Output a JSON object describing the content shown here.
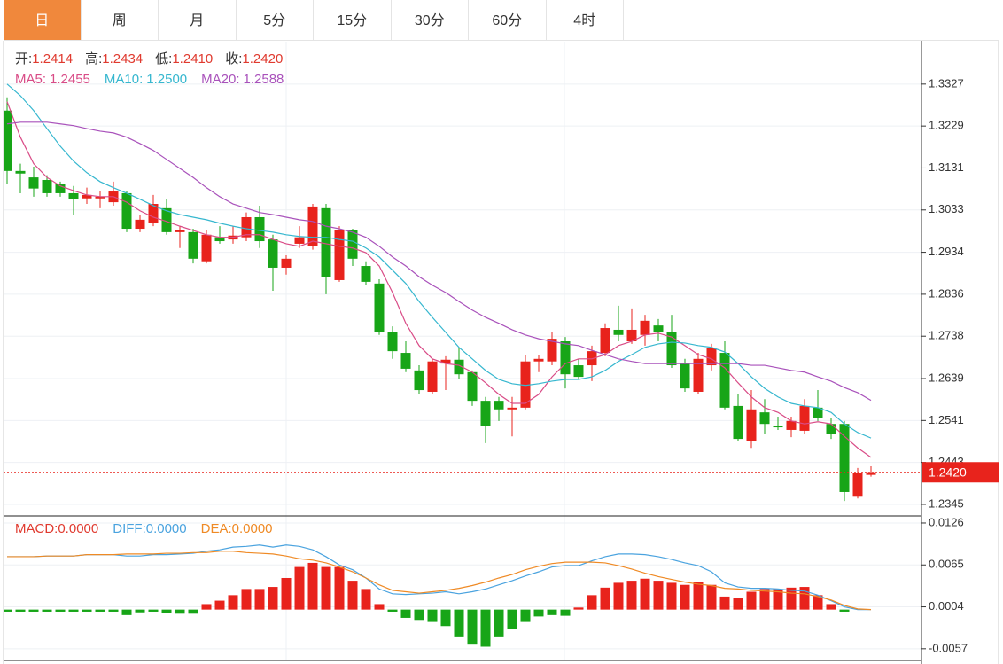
{
  "tabs": [
    "日",
    "周",
    "月",
    "5分",
    "15分",
    "30分",
    "60分",
    "4时"
  ],
  "active_tab": 0,
  "chart_data": [
    {
      "type": "candlestick",
      "up_color": "#e8231c",
      "down_color": "#17a517",
      "separator": ":",
      "header": [
        {
          "label": "开",
          "value": "1.2414"
        },
        {
          "label": "高",
          "value": "1.2434"
        },
        {
          "label": "低",
          "value": "1.2410"
        },
        {
          "label": "收",
          "value": "1.2420"
        }
      ],
      "ylim": [
        1.2318,
        1.3424
      ],
      "yticks": [
        1.3327,
        1.3229,
        1.3131,
        1.3033,
        1.2934,
        1.2836,
        1.2738,
        1.2639,
        1.2541,
        1.2443,
        1.2345
      ],
      "grid": true,
      "last_price": {
        "value": 1.242,
        "label": "1.2420"
      },
      "open": [
        1.3265,
        1.3124,
        1.3109,
        1.3103,
        1.3093,
        1.3072,
        1.306,
        1.306,
        1.3051,
        1.3072,
        1.2989,
        1.3002,
        1.3037,
        1.2981,
        1.2981,
        1.2913,
        1.2969,
        1.2964,
        1.2969,
        1.3016,
        1.2964,
        1.2898,
        1.2954,
        1.2948,
        1.3037,
        1.2869,
        1.2985,
        1.2902,
        1.2861,
        1.2747,
        1.2699,
        1.2658,
        1.2608,
        1.2674,
        1.2683,
        1.2654,
        1.2587,
        1.2587,
        1.2567,
        1.2571,
        1.2679,
        1.2679,
        1.2726,
        1.267,
        1.267,
        1.2699,
        1.2753,
        1.2726,
        1.2741,
        1.2763,
        1.2747,
        1.2674,
        1.2608,
        1.267,
        1.2699,
        1.2575,
        1.2494,
        1.256,
        1.2529,
        1.2519,
        1.2517,
        1.2571,
        1.2533,
        1.2533,
        1.2363,
        1.2414
      ],
      "high": [
        1.3296,
        1.3141,
        1.3134,
        1.3114,
        1.3099,
        1.3089,
        1.3085,
        1.3078,
        1.3099,
        1.3078,
        1.3022,
        1.3068,
        1.3058,
        1.2995,
        1.2989,
        1.2985,
        1.2995,
        1.2995,
        1.3027,
        1.3043,
        1.2975,
        1.2927,
        1.2995,
        1.3047,
        1.3047,
        1.2995,
        1.2989,
        1.2913,
        1.2871,
        1.2761,
        1.2726,
        1.267,
        1.2685,
        1.2691,
        1.2712,
        1.2658,
        1.2596,
        1.2596,
        1.2596,
        1.2695,
        1.2695,
        1.2747,
        1.2736,
        1.2685,
        1.2716,
        1.2768,
        1.2809,
        1.2803,
        1.2788,
        1.2778,
        1.2788,
        1.2685,
        1.2699,
        1.272,
        1.2726,
        1.2602,
        1.2612,
        1.2591,
        1.255,
        1.255,
        1.2591,
        1.2612,
        1.2546,
        1.254,
        1.243,
        1.2434
      ],
      "low": [
        1.3093,
        1.3072,
        1.3064,
        1.3064,
        1.3064,
        1.3022,
        1.3047,
        1.3037,
        1.3043,
        1.2981,
        1.2981,
        1.2995,
        1.2975,
        1.2944,
        1.2908,
        1.2908,
        1.2954,
        1.2954,
        1.296,
        1.2944,
        1.2844,
        1.2882,
        1.2944,
        1.294,
        1.2836,
        1.2865,
        1.2902,
        1.2857,
        1.2741,
        1.2685,
        1.2654,
        1.2602,
        1.2602,
        1.2612,
        1.2637,
        1.2575,
        1.2488,
        1.254,
        1.2504,
        1.2567,
        1.2654,
        1.267,
        1.2616,
        1.2637,
        1.2633,
        1.2691,
        1.2726,
        1.272,
        1.2716,
        1.2726,
        1.2664,
        1.2608,
        1.2602,
        1.2658,
        1.2567,
        1.2492,
        1.2477,
        1.2509,
        1.2519,
        1.2502,
        1.2509,
        1.254,
        1.2498,
        1.2353,
        1.2359,
        1.241
      ],
      "close": [
        1.3124,
        1.3118,
        1.3083,
        1.3072,
        1.3072,
        1.3058,
        1.3068,
        1.3064,
        1.3076,
        1.2989,
        1.301,
        1.3047,
        1.2981,
        1.2985,
        1.2919,
        1.2975,
        1.296,
        1.2973,
        1.3016,
        1.296,
        1.2898,
        1.2919,
        1.2969,
        1.3041,
        1.2877,
        1.2985,
        1.2919,
        1.2865,
        1.2747,
        1.2703,
        1.2662,
        1.2612,
        1.2679,
        1.2683,
        1.2649,
        1.2587,
        1.2529,
        1.2567,
        1.2571,
        1.2679,
        1.2685,
        1.2732,
        1.2649,
        1.2643,
        1.2703,
        1.2757,
        1.2741,
        1.2753,
        1.2774,
        1.2747,
        1.267,
        1.2616,
        1.2685,
        1.271,
        1.2571,
        1.2498,
        1.2567,
        1.2533,
        1.2525,
        1.254,
        1.2575,
        1.2546,
        1.2509,
        1.2374,
        1.2419,
        1.242
      ],
      "series": [
        {
          "name": "MA5",
          "color": "#d94c87",
          "value_label": "1.2455",
          "values": [
            1.3286,
            1.3203,
            1.3141,
            1.3109,
            1.3089,
            1.3078,
            1.3068,
            1.3064,
            1.3064,
            1.3051,
            1.3031,
            1.3016,
            1.3006,
            1.2995,
            1.2985,
            1.2975,
            1.2969,
            1.2969,
            1.2975,
            1.2975,
            1.2964,
            1.2954,
            1.2948,
            1.296,
            1.2954,
            1.2948,
            1.2944,
            1.2933,
            1.2902,
            1.284,
            1.2768,
            1.2716,
            1.2685,
            1.2674,
            1.267,
            1.2654,
            1.2629,
            1.2602,
            1.2581,
            1.2581,
            1.2602,
            1.2643,
            1.2674,
            1.2685,
            1.2685,
            1.2695,
            1.2716,
            1.2726,
            1.2741,
            1.2745,
            1.2736,
            1.2716,
            1.2695,
            1.2685,
            1.2664,
            1.2629,
            1.2596,
            1.2571,
            1.256,
            1.254,
            1.2533,
            1.2538,
            1.2533,
            1.2504,
            1.2477,
            1.2455
          ]
        },
        {
          "name": "MA10",
          "color": "#36b7cf",
          "value_label": "1.2500",
          "values": [
            1.3327,
            1.33,
            1.3265,
            1.3223,
            1.3182,
            1.3147,
            1.312,
            1.3099,
            1.3085,
            1.3072,
            1.3058,
            1.3043,
            1.3031,
            1.3022,
            1.3016,
            1.301,
            1.3002,
            1.2995,
            1.2989,
            1.2985,
            1.2981,
            1.2975,
            1.2971,
            1.2969,
            1.2969,
            1.2964,
            1.296,
            1.2944,
            1.2923,
            1.2892,
            1.2861,
            1.2819,
            1.2782,
            1.2747,
            1.2712,
            1.2685,
            1.2658,
            1.2637,
            1.2627,
            1.2623,
            1.2627,
            1.2633,
            1.2637,
            1.2637,
            1.2643,
            1.2658,
            1.2679,
            1.2695,
            1.2712,
            1.272,
            1.2724,
            1.2722,
            1.2716,
            1.2712,
            1.2701,
            1.2674,
            1.2643,
            1.2616,
            1.2596,
            1.2581,
            1.2575,
            1.2571,
            1.256,
            1.2533,
            1.2513,
            1.25
          ]
        },
        {
          "name": "MA20",
          "color": "#a952bb",
          "value_label": "1.2588",
          "values": [
            1.3234,
            1.3238,
            1.3238,
            1.3238,
            1.3234,
            1.323,
            1.3223,
            1.3217,
            1.3213,
            1.3203,
            1.3188,
            1.3172,
            1.3151,
            1.313,
            1.3109,
            1.3085,
            1.3064,
            1.3047,
            1.3037,
            1.3027,
            1.3022,
            1.3016,
            1.301,
            1.3006,
            1.2995,
            1.2989,
            1.2981,
            1.2969,
            1.2948,
            1.2923,
            1.2902,
            1.2877,
            1.2857,
            1.284,
            1.2819,
            1.2799,
            1.2782,
            1.2768,
            1.2753,
            1.2741,
            1.2732,
            1.2726,
            1.272,
            1.2716,
            1.2705,
            1.2695,
            1.2685,
            1.2679,
            1.2674,
            1.2674,
            1.2674,
            1.2674,
            1.2674,
            1.2674,
            1.2674,
            1.2674,
            1.267,
            1.267,
            1.2664,
            1.2658,
            1.2654,
            1.2643,
            1.2633,
            1.2618,
            1.2606,
            1.2588
          ]
        }
      ]
    },
    {
      "type": "macd",
      "up_color": "#e8231c",
      "down_color": "#17a517",
      "separator": ":",
      "ylim": [
        -0.0074,
        0.0135
      ],
      "yticks": [
        0.0126,
        0.0065,
        0.0004,
        -0.0057
      ],
      "grid": true,
      "series": [
        {
          "name": "MACD",
          "kind": "bar",
          "color": "#e03a2f",
          "value_label": "0.0000",
          "values": [
            -0.0003,
            -0.0003,
            -0.0003,
            -0.0003,
            -0.0003,
            -0.0003,
            -0.0003,
            -0.0003,
            -0.0003,
            -0.0008,
            -0.0004,
            -0.0003,
            -0.0005,
            -0.0006,
            -0.0006,
            0.0008,
            0.0013,
            0.0021,
            0.003,
            0.003,
            0.0033,
            0.0046,
            0.0062,
            0.0068,
            0.0062,
            0.0062,
            0.0042,
            0.003,
            0.0008,
            -0.0003,
            -0.0012,
            -0.0015,
            -0.0018,
            -0.0024,
            -0.0039,
            -0.0051,
            -0.0054,
            -0.0039,
            -0.0028,
            -0.0018,
            -0.001,
            -0.0008,
            -0.0009,
            0.0003,
            0.0021,
            0.0032,
            0.0039,
            0.0042,
            0.0045,
            0.0042,
            0.0039,
            0.0036,
            0.004,
            0.0036,
            0.0019,
            0.0017,
            0.0026,
            0.003,
            0.003,
            0.0032,
            0.0033,
            0.0021,
            0.0008,
            -0.0003,
            0,
            0
          ]
        },
        {
          "name": "DIFF",
          "kind": "line",
          "color": "#4aa3df",
          "value_label": "0.0000",
          "values": [
            0.0077,
            0.0077,
            0.0077,
            0.0078,
            0.0078,
            0.0078,
            0.008,
            0.008,
            0.008,
            0.0078,
            0.0078,
            0.008,
            0.008,
            0.0081,
            0.0082,
            0.0085,
            0.0087,
            0.0091,
            0.0092,
            0.0094,
            0.0091,
            0.0094,
            0.0092,
            0.0087,
            0.0077,
            0.0065,
            0.0058,
            0.0046,
            0.003,
            0.0023,
            0.0022,
            0.0023,
            0.0024,
            0.0026,
            0.0023,
            0.0026,
            0.003,
            0.0036,
            0.0042,
            0.0049,
            0.0055,
            0.0062,
            0.0064,
            0.0064,
            0.0071,
            0.0077,
            0.0081,
            0.0081,
            0.008,
            0.0077,
            0.0073,
            0.0068,
            0.0064,
            0.0055,
            0.0039,
            0.0033,
            0.0031,
            0.0031,
            0.003,
            0.0028,
            0.0027,
            0.0021,
            0.0013,
            0.0004,
            0,
            0
          ]
        },
        {
          "name": "DEA",
          "kind": "line",
          "color": "#ef8a25",
          "value_label": "0.0000",
          "values": [
            0.0077,
            0.0077,
            0.0077,
            0.0078,
            0.0078,
            0.0078,
            0.008,
            0.008,
            0.008,
            0.0081,
            0.0081,
            0.0081,
            0.0082,
            0.0082,
            0.0083,
            0.0083,
            0.0085,
            0.0085,
            0.0083,
            0.0082,
            0.0081,
            0.0078,
            0.0074,
            0.0072,
            0.0068,
            0.0062,
            0.0055,
            0.0046,
            0.0036,
            0.0028,
            0.0026,
            0.0024,
            0.0026,
            0.0028,
            0.0031,
            0.0035,
            0.004,
            0.0046,
            0.0051,
            0.0058,
            0.0063,
            0.0067,
            0.0069,
            0.0069,
            0.0069,
            0.0068,
            0.0064,
            0.0059,
            0.0053,
            0.0048,
            0.0044,
            0.004,
            0.0037,
            0.0035,
            0.0031,
            0.003,
            0.0028,
            0.0027,
            0.0026,
            0.0024,
            0.0023,
            0.0019,
            0.0014,
            0.0006,
            0.0001,
            0
          ]
        }
      ]
    }
  ]
}
